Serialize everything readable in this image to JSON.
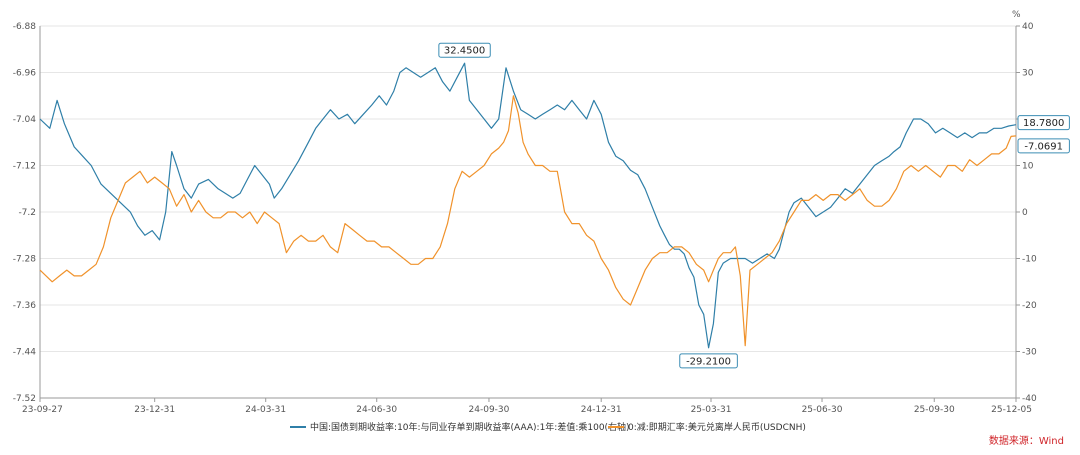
{
  "chart_data": {
    "type": "line",
    "x_ticks": [
      "23-09-27",
      "23-12-31",
      "24-03-31",
      "24-06-30",
      "24-09-30",
      "24-12-31",
      "25-03-31",
      "25-06-30",
      "25-09-30",
      "25-12-05"
    ],
    "x_tick_positions": [
      0,
      94,
      185,
      276,
      368,
      460,
      550,
      641,
      733,
      800
    ],
    "x_range": [
      0,
      800
    ],
    "ylim_left": [
      -7.52,
      -6.88
    ],
    "yticks_left": [
      "-6.88",
      "-6.96",
      "-7.04",
      "-7.12",
      "-7.2",
      "-7.28",
      "-7.36",
      "-7.44",
      "-7.52"
    ],
    "yticks_left_values": [
      -6.88,
      -6.96,
      -7.04,
      -7.12,
      -7.2,
      -7.28,
      -7.36,
      -7.44,
      -7.52
    ],
    "ylim_right": [
      -40,
      40
    ],
    "yticks_right": [
      "40",
      "30",
      "20",
      "10",
      "0",
      "-10",
      "-20",
      "-30",
      "-40"
    ],
    "yticks_right_values": [
      40,
      30,
      20,
      10,
      0,
      -10,
      -20,
      -30,
      -40
    ],
    "right_unit": "%",
    "series": [
      {
        "name": "中国:国债到期收益率:10年:与同业存单到期收益率(AAA):1年:差值:乘100(右轴)",
        "axis": "right",
        "color": "#2f7fa8",
        "points": [
          [
            0,
            20
          ],
          [
            8,
            18
          ],
          [
            14,
            24
          ],
          [
            20,
            19
          ],
          [
            28,
            14
          ],
          [
            35,
            12
          ],
          [
            42,
            10
          ],
          [
            50,
            6
          ],
          [
            58,
            4
          ],
          [
            66,
            2
          ],
          [
            74,
            0
          ],
          [
            80,
            -3
          ],
          [
            86,
            -5
          ],
          [
            92,
            -4
          ],
          [
            98,
            -6
          ],
          [
            103,
            0
          ],
          [
            108,
            13
          ],
          [
            112,
            10
          ],
          [
            118,
            5
          ],
          [
            124,
            3
          ],
          [
            130,
            6
          ],
          [
            138,
            7
          ],
          [
            146,
            5
          ],
          [
            152,
            4
          ],
          [
            158,
            3
          ],
          [
            164,
            4
          ],
          [
            170,
            7
          ],
          [
            176,
            10
          ],
          [
            182,
            8
          ],
          [
            188,
            6
          ],
          [
            192,
            3
          ],
          [
            198,
            5
          ],
          [
            205,
            8
          ],
          [
            212,
            11
          ],
          [
            220,
            15
          ],
          [
            226,
            18
          ],
          [
            232,
            20
          ],
          [
            238,
            22
          ],
          [
            245,
            20
          ],
          [
            252,
            21
          ],
          [
            258,
            19
          ],
          [
            265,
            21
          ],
          [
            272,
            23
          ],
          [
            278,
            25
          ],
          [
            284,
            23
          ],
          [
            290,
            26
          ],
          [
            295,
            30
          ],
          [
            300,
            31
          ],
          [
            306,
            30
          ],
          [
            312,
            29
          ],
          [
            318,
            30
          ],
          [
            324,
            31
          ],
          [
            330,
            28
          ],
          [
            336,
            26
          ],
          [
            342,
            29
          ],
          [
            348,
            32
          ],
          [
            352,
            24
          ],
          [
            358,
            22
          ],
          [
            364,
            20
          ],
          [
            370,
            18
          ],
          [
            376,
            20
          ],
          [
            382,
            31
          ],
          [
            388,
            26
          ],
          [
            394,
            22
          ],
          [
            400,
            21
          ],
          [
            406,
            20
          ],
          [
            412,
            21
          ],
          [
            418,
            22
          ],
          [
            424,
            23
          ],
          [
            430,
            22
          ],
          [
            436,
            24
          ],
          [
            442,
            22
          ],
          [
            448,
            20
          ],
          [
            454,
            24
          ],
          [
            460,
            21
          ],
          [
            466,
            15
          ],
          [
            472,
            12
          ],
          [
            478,
            11
          ],
          [
            484,
            9
          ],
          [
            490,
            8
          ],
          [
            496,
            5
          ],
          [
            502,
            1
          ],
          [
            508,
            -3
          ],
          [
            512,
            -5
          ],
          [
            516,
            -7
          ],
          [
            520,
            -8
          ],
          [
            524,
            -8
          ],
          [
            528,
            -9
          ],
          [
            532,
            -12
          ],
          [
            536,
            -14
          ],
          [
            540,
            -20
          ],
          [
            544,
            -22
          ],
          [
            548,
            -29.21
          ],
          [
            552,
            -24
          ],
          [
            556,
            -13
          ],
          [
            560,
            -11
          ],
          [
            566,
            -10
          ],
          [
            572,
            -10
          ],
          [
            578,
            -10
          ],
          [
            584,
            -11
          ],
          [
            590,
            -10
          ],
          [
            596,
            -9
          ],
          [
            602,
            -10
          ],
          [
            606,
            -8
          ],
          [
            610,
            -4
          ],
          [
            614,
            0
          ],
          [
            618,
            2
          ],
          [
            624,
            3
          ],
          [
            630,
            1
          ],
          [
            636,
            -1
          ],
          [
            642,
            0
          ],
          [
            648,
            1
          ],
          [
            654,
            3
          ],
          [
            660,
            5
          ],
          [
            666,
            4
          ],
          [
            672,
            6
          ],
          [
            678,
            8
          ],
          [
            684,
            10
          ],
          [
            690,
            11
          ],
          [
            696,
            12
          ],
          [
            700,
            13
          ],
          [
            705,
            14
          ],
          [
            710,
            17
          ],
          [
            716,
            20
          ],
          [
            722,
            20
          ],
          [
            728,
            19
          ],
          [
            734,
            17
          ],
          [
            740,
            18
          ],
          [
            746,
            17
          ],
          [
            752,
            16
          ],
          [
            758,
            17
          ],
          [
            764,
            16
          ],
          [
            770,
            17
          ],
          [
            776,
            17
          ],
          [
            782,
            18
          ],
          [
            788,
            18
          ],
          [
            794,
            18.5
          ],
          [
            800,
            18.78
          ]
        ]
      },
      {
        "name": "0:减:即期汇率:美元兑离岸人民币(USDCNH)",
        "axis": "left",
        "color": "#f0922b",
        "points": [
          [
            0,
            -7.3
          ],
          [
            5,
            -7.31
          ],
          [
            10,
            -7.32
          ],
          [
            16,
            -7.31
          ],
          [
            22,
            -7.3
          ],
          [
            28,
            -7.31
          ],
          [
            34,
            -7.31
          ],
          [
            40,
            -7.3
          ],
          [
            46,
            -7.29
          ],
          [
            52,
            -7.26
          ],
          [
            58,
            -7.21
          ],
          [
            64,
            -7.18
          ],
          [
            70,
            -7.15
          ],
          [
            76,
            -7.14
          ],
          [
            82,
            -7.13
          ],
          [
            88,
            -7.15
          ],
          [
            94,
            -7.14
          ],
          [
            100,
            -7.15
          ],
          [
            106,
            -7.16
          ],
          [
            112,
            -7.19
          ],
          [
            118,
            -7.17
          ],
          [
            124,
            -7.2
          ],
          [
            130,
            -7.18
          ],
          [
            136,
            -7.2
          ],
          [
            142,
            -7.21
          ],
          [
            148,
            -7.21
          ],
          [
            154,
            -7.2
          ],
          [
            160,
            -7.2
          ],
          [
            166,
            -7.21
          ],
          [
            172,
            -7.2
          ],
          [
            178,
            -7.22
          ],
          [
            184,
            -7.2
          ],
          [
            190,
            -7.21
          ],
          [
            196,
            -7.22
          ],
          [
            202,
            -7.27
          ],
          [
            208,
            -7.25
          ],
          [
            214,
            -7.24
          ],
          [
            220,
            -7.25
          ],
          [
            226,
            -7.25
          ],
          [
            232,
            -7.24
          ],
          [
            238,
            -7.26
          ],
          [
            244,
            -7.27
          ],
          [
            250,
            -7.22
          ],
          [
            256,
            -7.23
          ],
          [
            262,
            -7.24
          ],
          [
            268,
            -7.25
          ],
          [
            274,
            -7.25
          ],
          [
            280,
            -7.26
          ],
          [
            286,
            -7.26
          ],
          [
            292,
            -7.27
          ],
          [
            298,
            -7.28
          ],
          [
            304,
            -7.29
          ],
          [
            310,
            -7.29
          ],
          [
            316,
            -7.28
          ],
          [
            322,
            -7.28
          ],
          [
            328,
            -7.26
          ],
          [
            334,
            -7.22
          ],
          [
            340,
            -7.16
          ],
          [
            346,
            -7.13
          ],
          [
            352,
            -7.14
          ],
          [
            358,
            -7.13
          ],
          [
            364,
            -7.12
          ],
          [
            370,
            -7.1
          ],
          [
            376,
            -7.09
          ],
          [
            380,
            -7.08
          ],
          [
            384,
            -7.06
          ],
          [
            388,
            -7.0
          ],
          [
            392,
            -7.03
          ],
          [
            396,
            -7.08
          ],
          [
            400,
            -7.1
          ],
          [
            406,
            -7.12
          ],
          [
            412,
            -7.12
          ],
          [
            418,
            -7.13
          ],
          [
            424,
            -7.13
          ],
          [
            430,
            -7.2
          ],
          [
            436,
            -7.22
          ],
          [
            442,
            -7.22
          ],
          [
            448,
            -7.24
          ],
          [
            454,
            -7.25
          ],
          [
            460,
            -7.28
          ],
          [
            466,
            -7.3
          ],
          [
            472,
            -7.33
          ],
          [
            478,
            -7.35
          ],
          [
            484,
            -7.36
          ],
          [
            490,
            -7.33
          ],
          [
            496,
            -7.3
          ],
          [
            502,
            -7.28
          ],
          [
            508,
            -7.27
          ],
          [
            514,
            -7.27
          ],
          [
            520,
            -7.26
          ],
          [
            526,
            -7.26
          ],
          [
            532,
            -7.27
          ],
          [
            538,
            -7.29
          ],
          [
            544,
            -7.3
          ],
          [
            548,
            -7.32
          ],
          [
            552,
            -7.3
          ],
          [
            556,
            -7.28
          ],
          [
            560,
            -7.27
          ],
          [
            566,
            -7.27
          ],
          [
            570,
            -7.26
          ],
          [
            574,
            -7.31
          ],
          [
            578,
            -7.43
          ],
          [
            582,
            -7.3
          ],
          [
            588,
            -7.29
          ],
          [
            594,
            -7.28
          ],
          [
            600,
            -7.27
          ],
          [
            606,
            -7.25
          ],
          [
            612,
            -7.22
          ],
          [
            618,
            -7.2
          ],
          [
            624,
            -7.18
          ],
          [
            630,
            -7.18
          ],
          [
            636,
            -7.17
          ],
          [
            642,
            -7.18
          ],
          [
            648,
            -7.17
          ],
          [
            654,
            -7.17
          ],
          [
            660,
            -7.18
          ],
          [
            666,
            -7.17
          ],
          [
            672,
            -7.16
          ],
          [
            678,
            -7.18
          ],
          [
            684,
            -7.19
          ],
          [
            690,
            -7.19
          ],
          [
            696,
            -7.18
          ],
          [
            702,
            -7.16
          ],
          [
            708,
            -7.13
          ],
          [
            714,
            -7.12
          ],
          [
            720,
            -7.13
          ],
          [
            726,
            -7.12
          ],
          [
            732,
            -7.13
          ],
          [
            738,
            -7.14
          ],
          [
            744,
            -7.12
          ],
          [
            750,
            -7.12
          ],
          [
            756,
            -7.13
          ],
          [
            762,
            -7.11
          ],
          [
            768,
            -7.12
          ],
          [
            774,
            -7.11
          ],
          [
            780,
            -7.1
          ],
          [
            786,
            -7.1
          ],
          [
            792,
            -7.09
          ],
          [
            796,
            -7.07
          ],
          [
            800,
            -7.0691
          ]
        ]
      }
    ],
    "callouts": [
      {
        "text": "32.4500",
        "series": 0,
        "x": 348
      },
      {
        "text": "-29.2100",
        "series": 0,
        "x": 548
      },
      {
        "text": "18.7800",
        "series": 0,
        "x": 800
      },
      {
        "text": "-7.0691",
        "series": 1,
        "x": 800
      }
    ],
    "source": "数据来源：Wind"
  }
}
